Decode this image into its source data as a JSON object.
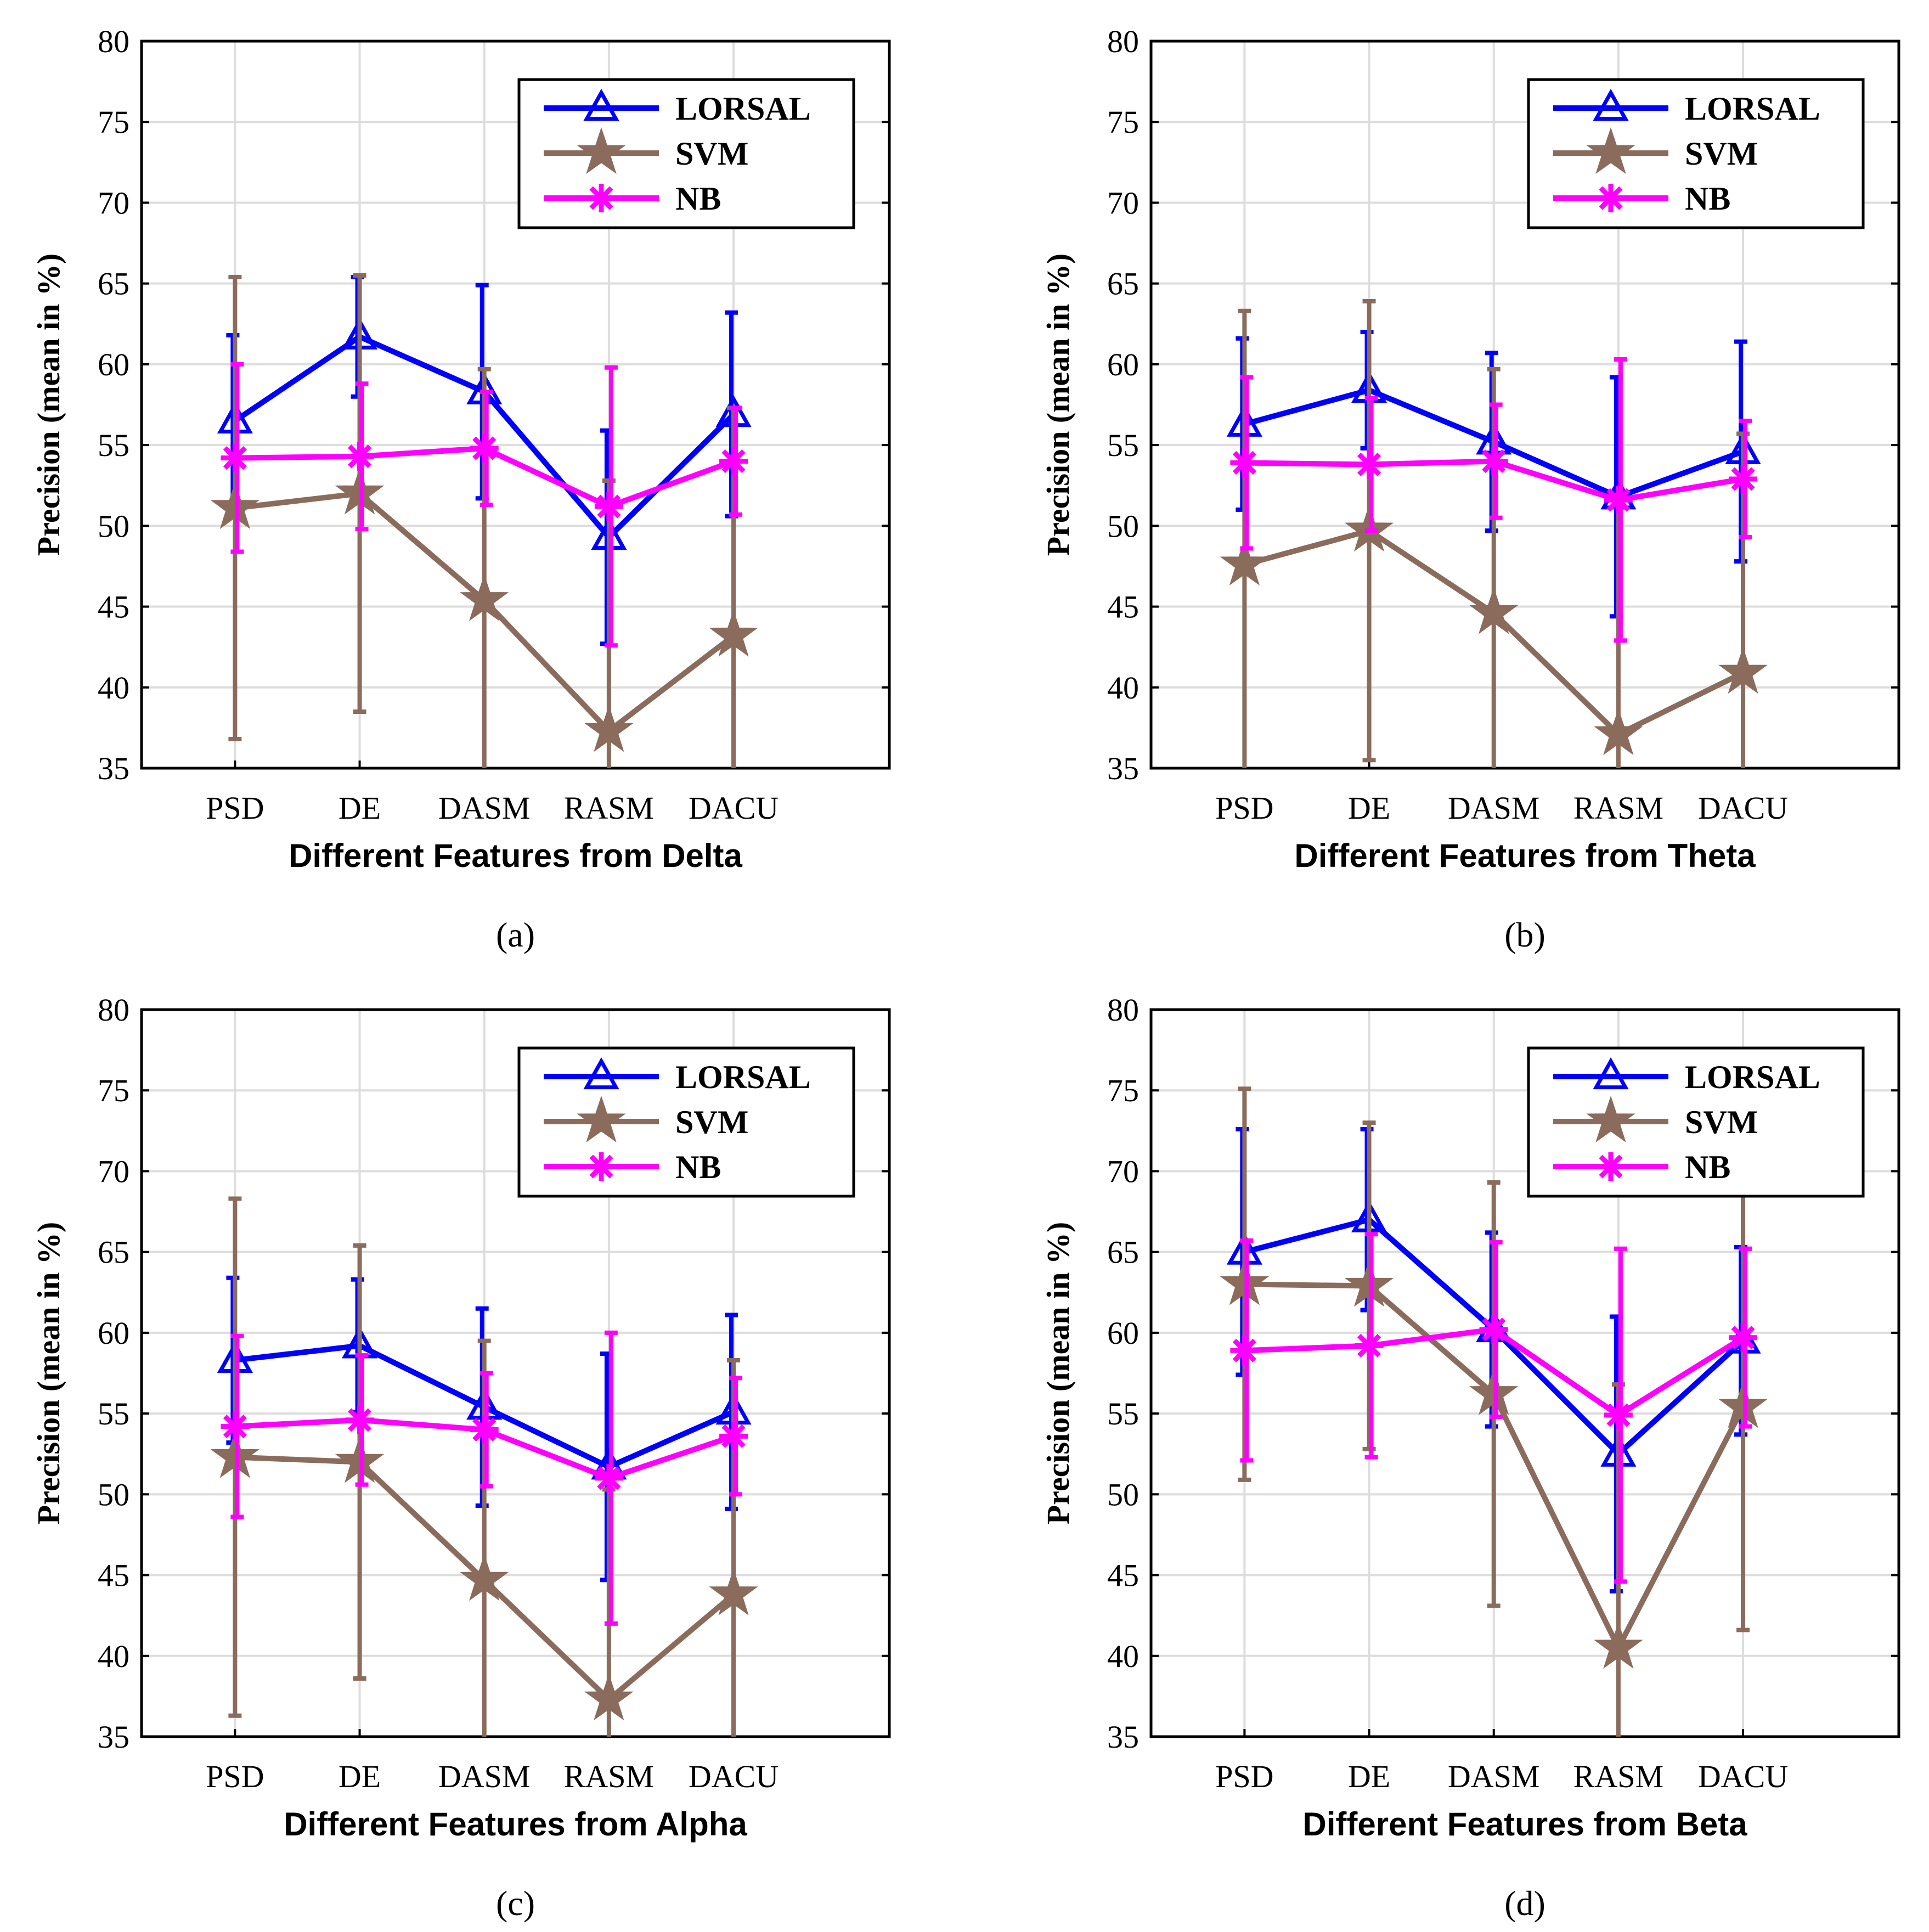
{
  "chart_data": [
    {
      "type": "line",
      "panel_label": "(a)",
      "title": "",
      "xlabel": "Different Features from Delta",
      "ylabel": "Precision (mean in %)",
      "categories": [
        "PSD",
        "DE",
        "DASM",
        "RASM",
        "DACU"
      ],
      "ylim": [
        35,
        80
      ],
      "yticks": [
        "35",
        "40",
        "45",
        "50",
        "55",
        "60",
        "65",
        "70",
        "75",
        "80"
      ],
      "grid": true,
      "legend_position": "top-right",
      "series": [
        {
          "name": "LORSAL",
          "marker": "triangle",
          "values": [
            56.5,
            61.7,
            58.3,
            49.3,
            56.9
          ],
          "errors": [
            5.3,
            3.7,
            6.6,
            6.6,
            6.3
          ]
        },
        {
          "name": "SVM",
          "marker": "star",
          "values": [
            51.1,
            52.0,
            45.4,
            37.3,
            43.2
          ],
          "errors": [
            14.3,
            13.5,
            14.3,
            15.5,
            14.1
          ]
        },
        {
          "name": "NB",
          "marker": "asterisk",
          "values": [
            54.2,
            54.3,
            54.8,
            51.2,
            54.0
          ],
          "errors": [
            5.8,
            4.5,
            3.5,
            8.6,
            3.3
          ]
        }
      ]
    },
    {
      "type": "line",
      "panel_label": "(b)",
      "title": "",
      "xlabel": "Different Features from Theta",
      "ylabel": "Precision (mean in %)",
      "categories": [
        "PSD",
        "DE",
        "DASM",
        "RASM",
        "DACU"
      ],
      "ylim": [
        35,
        80
      ],
      "yticks": [
        "35",
        "40",
        "45",
        "50",
        "55",
        "60",
        "65",
        "70",
        "75",
        "80"
      ],
      "grid": true,
      "legend_position": "top-right",
      "series": [
        {
          "name": "LORSAL",
          "marker": "triangle",
          "values": [
            56.3,
            58.4,
            55.2,
            51.8,
            54.6
          ],
          "errors": [
            5.3,
            3.6,
            5.5,
            7.4,
            6.8
          ]
        },
        {
          "name": "SVM",
          "marker": "star",
          "values": [
            47.6,
            49.7,
            44.6,
            37.1,
            40.9
          ],
          "errors": [
            15.7,
            14.2,
            15.1,
            14.8,
            14.8
          ]
        },
        {
          "name": "NB",
          "marker": "asterisk",
          "values": [
            53.9,
            53.8,
            54.0,
            51.6,
            52.9
          ],
          "errors": [
            5.3,
            4.1,
            3.5,
            8.7,
            3.6
          ]
        }
      ]
    },
    {
      "type": "line",
      "panel_label": "(c)",
      "title": "",
      "xlabel": "Different Features from Alpha",
      "ylabel": "Precision (mean in %)",
      "categories": [
        "PSD",
        "DE",
        "DASM",
        "RASM",
        "DACU"
      ],
      "ylim": [
        35,
        80
      ],
      "yticks": [
        "35",
        "40",
        "45",
        "50",
        "55",
        "60",
        "65",
        "70",
        "75",
        "80"
      ],
      "grid": true,
      "legend_position": "top-right",
      "series": [
        {
          "name": "LORSAL",
          "marker": "triangle",
          "values": [
            58.3,
            59.2,
            55.4,
            51.7,
            55.1
          ],
          "errors": [
            5.1,
            4.1,
            6.1,
            7.0,
            6.0
          ]
        },
        {
          "name": "SVM",
          "marker": "star",
          "values": [
            52.3,
            52.0,
            44.7,
            37.3,
            43.8
          ],
          "errors": [
            16.0,
            13.4,
            14.8,
            13.0,
            14.5
          ]
        },
        {
          "name": "NB",
          "marker": "asterisk",
          "values": [
            54.2,
            54.6,
            54.0,
            51.0,
            53.6
          ],
          "errors": [
            5.6,
            4.0,
            3.5,
            9.0,
            3.6
          ]
        }
      ]
    },
    {
      "type": "line",
      "panel_label": "(d)",
      "title": "",
      "xlabel": "Different Features from Beta",
      "ylabel": "Precision (mean in %)",
      "categories": [
        "PSD",
        "DE",
        "DASM",
        "RASM",
        "DACU"
      ],
      "ylim": [
        35,
        80
      ],
      "yticks": [
        "35",
        "40",
        "45",
        "50",
        "55",
        "60",
        "65",
        "70",
        "75",
        "80"
      ],
      "grid": true,
      "legend_position": "top-right",
      "series": [
        {
          "name": "LORSAL",
          "marker": "triangle",
          "values": [
            65.0,
            67.0,
            60.2,
            52.5,
            59.5
          ],
          "errors": [
            7.6,
            5.6,
            6.0,
            8.5,
            5.8
          ]
        },
        {
          "name": "SVM",
          "marker": "star",
          "values": [
            63.0,
            62.9,
            56.2,
            40.5,
            55.4
          ],
          "errors": [
            12.1,
            10.1,
            13.1,
            16.3,
            13.8
          ]
        },
        {
          "name": "NB",
          "marker": "asterisk",
          "values": [
            58.9,
            59.2,
            60.2,
            54.9,
            59.7
          ],
          "errors": [
            6.8,
            6.9,
            5.4,
            10.3,
            5.5
          ]
        }
      ]
    }
  ],
  "colors": {
    "LORSAL": "#0000ff",
    "SVM": "#8b6c5c",
    "NB": "#ff00ff",
    "axis": "#000000",
    "grid": "#dddddd"
  }
}
